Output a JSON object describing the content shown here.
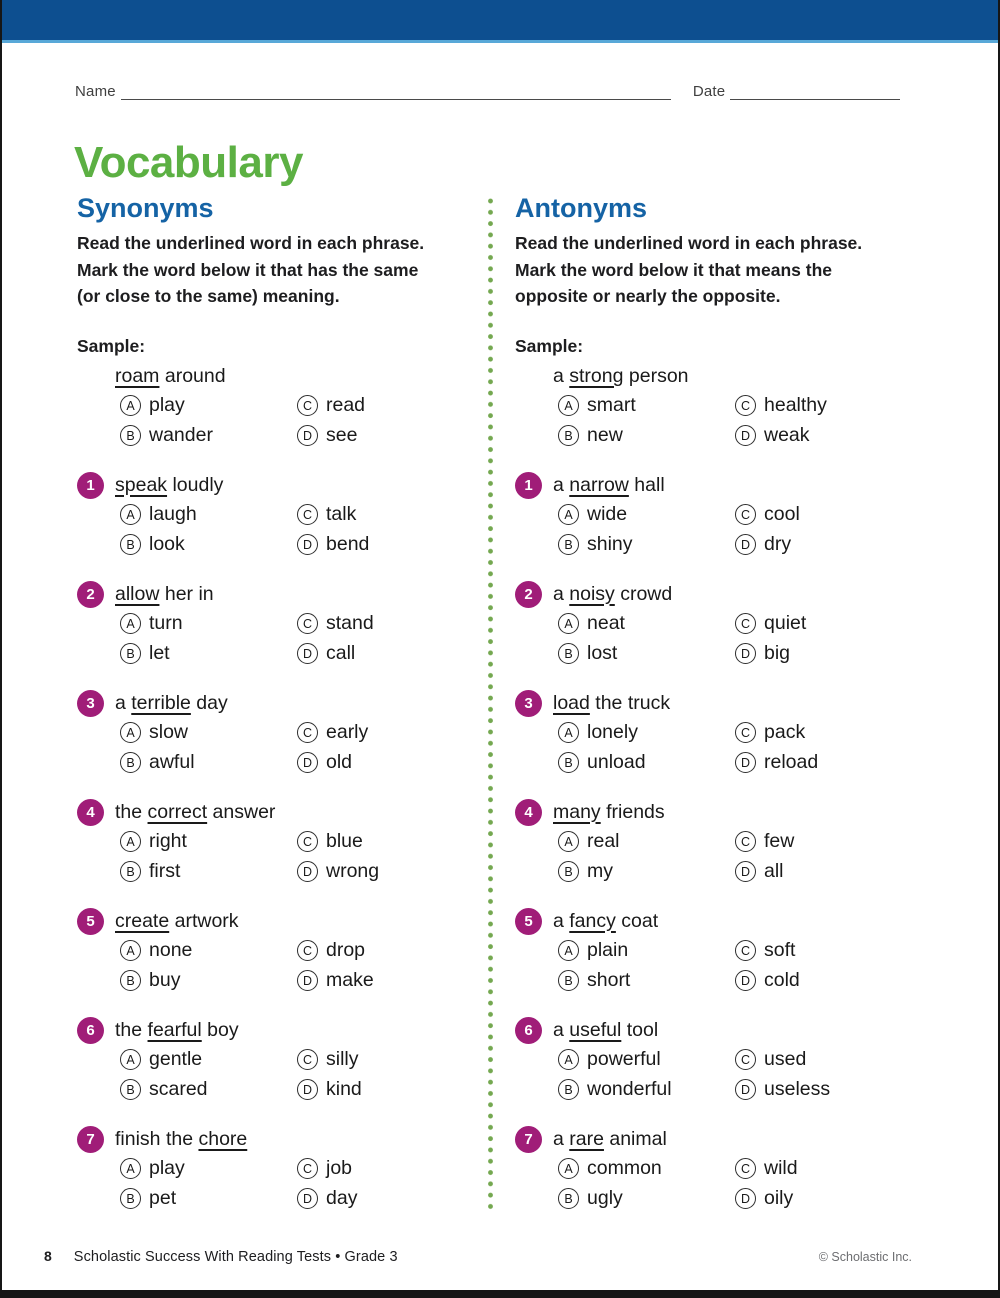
{
  "header": {
    "name_label": "Name",
    "date_label": "Date"
  },
  "page_title": "Vocabulary",
  "columns": [
    {
      "heading": "Synonyms",
      "instructions_lines": [
        "Read the underlined word in each phrase.",
        "Mark the word below it that has the same",
        "(or close to the same) meaning."
      ],
      "sample_label": "Sample:",
      "sample": {
        "phrase": {
          "pre": "",
          "word": "roam",
          "post": " around"
        },
        "options": [
          {
            "letter": "A",
            "text": "play"
          },
          {
            "letter": "B",
            "text": "wander"
          },
          {
            "letter": "C",
            "text": "read"
          },
          {
            "letter": "D",
            "text": "see"
          }
        ]
      },
      "questions": [
        {
          "num": "1",
          "phrase": {
            "pre": "",
            "word": "speak",
            "post": " loudly"
          },
          "options": [
            {
              "letter": "A",
              "text": "laugh"
            },
            {
              "letter": "B",
              "text": "look"
            },
            {
              "letter": "C",
              "text": "talk"
            },
            {
              "letter": "D",
              "text": "bend"
            }
          ]
        },
        {
          "num": "2",
          "phrase": {
            "pre": "",
            "word": "allow",
            "post": " her in"
          },
          "options": [
            {
              "letter": "A",
              "text": "turn"
            },
            {
              "letter": "B",
              "text": "let"
            },
            {
              "letter": "C",
              "text": "stand"
            },
            {
              "letter": "D",
              "text": "call"
            }
          ]
        },
        {
          "num": "3",
          "phrase": {
            "pre": "a ",
            "word": "terrible",
            "post": " day"
          },
          "options": [
            {
              "letter": "A",
              "text": "slow"
            },
            {
              "letter": "B",
              "text": "awful"
            },
            {
              "letter": "C",
              "text": "early"
            },
            {
              "letter": "D",
              "text": "old"
            }
          ]
        },
        {
          "num": "4",
          "phrase": {
            "pre": "the ",
            "word": "correct",
            "post": " answer"
          },
          "options": [
            {
              "letter": "A",
              "text": "right"
            },
            {
              "letter": "B",
              "text": "first"
            },
            {
              "letter": "C",
              "text": "blue"
            },
            {
              "letter": "D",
              "text": "wrong"
            }
          ]
        },
        {
          "num": "5",
          "phrase": {
            "pre": "",
            "word": "create",
            "post": " artwork"
          },
          "options": [
            {
              "letter": "A",
              "text": "none"
            },
            {
              "letter": "B",
              "text": "buy"
            },
            {
              "letter": "C",
              "text": "drop"
            },
            {
              "letter": "D",
              "text": "make"
            }
          ]
        },
        {
          "num": "6",
          "phrase": {
            "pre": "the ",
            "word": "fearful",
            "post": " boy"
          },
          "options": [
            {
              "letter": "A",
              "text": "gentle"
            },
            {
              "letter": "B",
              "text": "scared"
            },
            {
              "letter": "C",
              "text": "silly"
            },
            {
              "letter": "D",
              "text": "kind"
            }
          ]
        },
        {
          "num": "7",
          "phrase": {
            "pre": "finish the ",
            "word": "chore",
            "post": ""
          },
          "options": [
            {
              "letter": "A",
              "text": "play"
            },
            {
              "letter": "B",
              "text": "pet"
            },
            {
              "letter": "C",
              "text": "job"
            },
            {
              "letter": "D",
              "text": "day"
            }
          ]
        }
      ]
    },
    {
      "heading": "Antonyms",
      "instructions_lines": [
        "Read the underlined word in each phrase.",
        "Mark the word below it that means the",
        "opposite or nearly the opposite."
      ],
      "sample_label": "Sample:",
      "sample": {
        "phrase": {
          "pre": "a ",
          "word": "strong",
          "post": " person"
        },
        "options": [
          {
            "letter": "A",
            "text": "smart"
          },
          {
            "letter": "B",
            "text": "new"
          },
          {
            "letter": "C",
            "text": "healthy"
          },
          {
            "letter": "D",
            "text": "weak"
          }
        ]
      },
      "questions": [
        {
          "num": "1",
          "phrase": {
            "pre": "a ",
            "word": "narrow",
            "post": " hall"
          },
          "options": [
            {
              "letter": "A",
              "text": "wide"
            },
            {
              "letter": "B",
              "text": "shiny"
            },
            {
              "letter": "C",
              "text": "cool"
            },
            {
              "letter": "D",
              "text": "dry"
            }
          ]
        },
        {
          "num": "2",
          "phrase": {
            "pre": "a ",
            "word": "noisy",
            "post": " crowd"
          },
          "options": [
            {
              "letter": "A",
              "text": "neat"
            },
            {
              "letter": "B",
              "text": "lost"
            },
            {
              "letter": "C",
              "text": "quiet"
            },
            {
              "letter": "D",
              "text": "big"
            }
          ]
        },
        {
          "num": "3",
          "phrase": {
            "pre": "",
            "word": "load",
            "post": " the truck"
          },
          "options": [
            {
              "letter": "A",
              "text": "lonely"
            },
            {
              "letter": "B",
              "text": "unload"
            },
            {
              "letter": "C",
              "text": "pack"
            },
            {
              "letter": "D",
              "text": "reload"
            }
          ]
        },
        {
          "num": "4",
          "phrase": {
            "pre": "",
            "word": "many",
            "post": " friends"
          },
          "options": [
            {
              "letter": "A",
              "text": "real"
            },
            {
              "letter": "B",
              "text": "my"
            },
            {
              "letter": "C",
              "text": "few"
            },
            {
              "letter": "D",
              "text": "all"
            }
          ]
        },
        {
          "num": "5",
          "phrase": {
            "pre": "a ",
            "word": "fancy",
            "post": " coat"
          },
          "options": [
            {
              "letter": "A",
              "text": "plain"
            },
            {
              "letter": "B",
              "text": "short"
            },
            {
              "letter": "C",
              "text": "soft"
            },
            {
              "letter": "D",
              "text": "cold"
            }
          ]
        },
        {
          "num": "6",
          "phrase": {
            "pre": "a ",
            "word": "useful",
            "post": " tool"
          },
          "options": [
            {
              "letter": "A",
              "text": "powerful"
            },
            {
              "letter": "B",
              "text": "wonderful"
            },
            {
              "letter": "C",
              "text": "used"
            },
            {
              "letter": "D",
              "text": "useless"
            }
          ]
        },
        {
          "num": "7",
          "phrase": {
            "pre": "a ",
            "word": "rare",
            "post": " animal"
          },
          "options": [
            {
              "letter": "A",
              "text": "common"
            },
            {
              "letter": "B",
              "text": "ugly"
            },
            {
              "letter": "C",
              "text": "wild"
            },
            {
              "letter": "D",
              "text": "oily"
            }
          ]
        }
      ]
    }
  ],
  "footer": {
    "page_number": "8",
    "book_title": "Scholastic Success With Reading Tests • Grade 3",
    "copyright": "© Scholastic Inc."
  },
  "colors": {
    "header_bar": "#0d4f90",
    "header_edge": "#58a8d8",
    "title_green": "#5cb043",
    "heading_blue": "#1563a5",
    "badge_magenta": "#a01d78",
    "dot_green": "#74a850",
    "footer_gray": "#6d6e71"
  }
}
